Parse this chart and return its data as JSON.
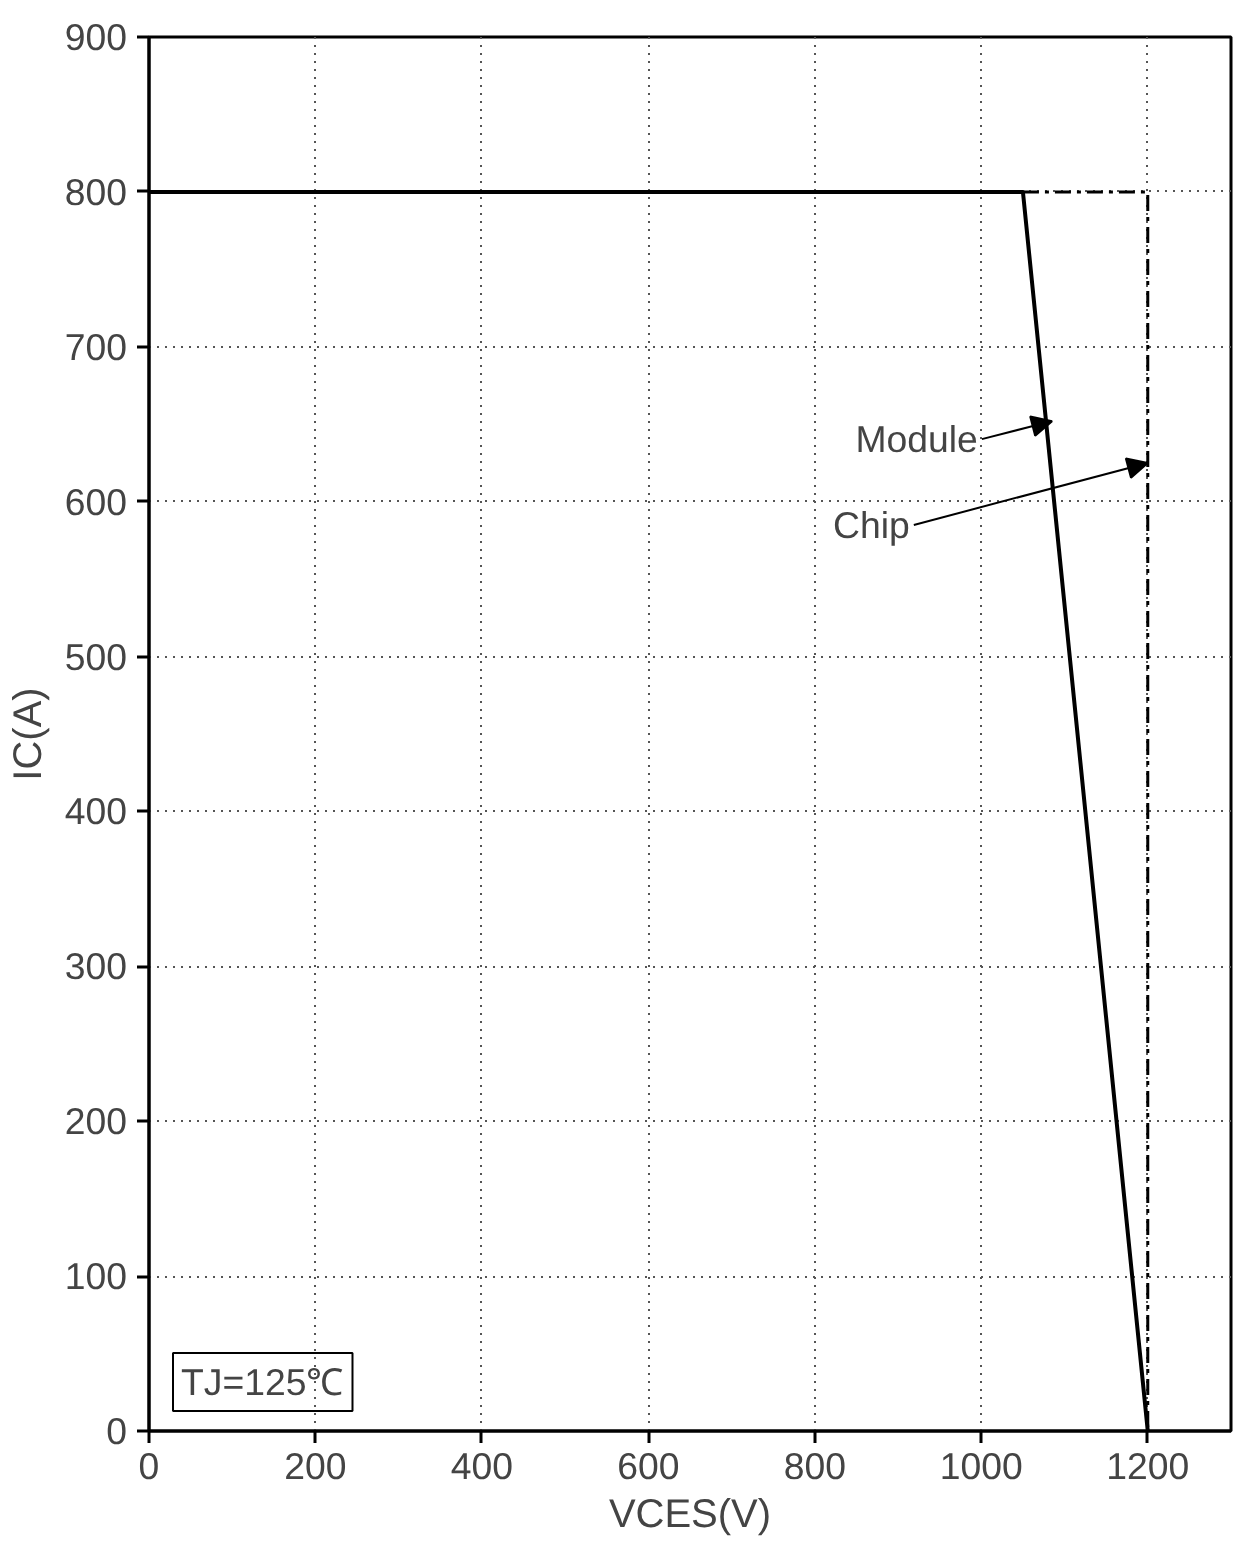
{
  "chart_data": {
    "type": "line",
    "xlabel": "VCES(V)",
    "ylabel": "IC(A)",
    "x": [
      0,
      1050,
      1200,
      1200
    ],
    "series": [
      {
        "color": "#000000",
        "line_style": "solid",
        "values": [
          800,
          800,
          0,
          null
        ]
      },
      {
        "color": "#000000",
        "line_style": "dashdot",
        "values": [
          null,
          800,
          800,
          0
        ]
      }
    ],
    "annotations": [
      {
        "text": "Module",
        "x": 1085,
        "y": 652
      },
      {
        "text": "Chip",
        "x": 1200,
        "y": 625
      },
      "TJ=125℃"
    ],
    "xlim": [
      0,
      1300
    ],
    "xticks": [
      0,
      200,
      400,
      600,
      800,
      1000,
      1200
    ],
    "ylim": [
      0,
      900
    ],
    "yticks": [
      0,
      100,
      200,
      300,
      400,
      500,
      600,
      700,
      800,
      900
    ],
    "grid": true,
    "marker": "none"
  }
}
